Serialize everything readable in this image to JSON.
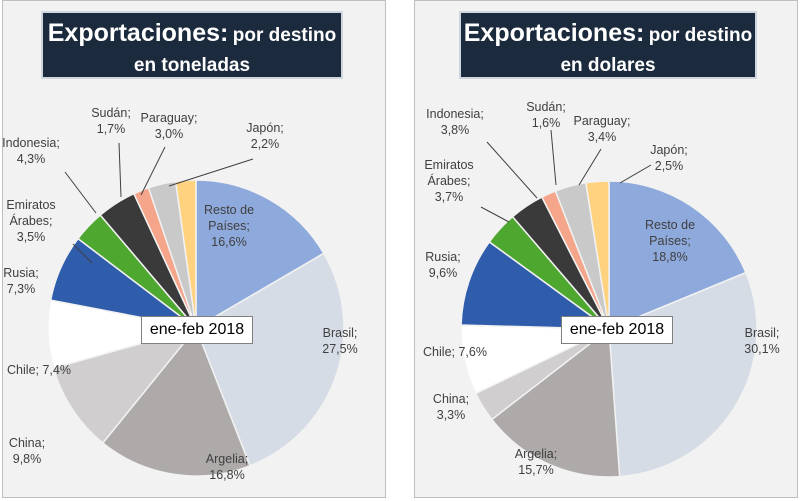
{
  "period_label": "ene-feb 2018",
  "chart_data": [
    {
      "type": "pie",
      "title": "Exportaciones:",
      "subtitle_part1": "por destino",
      "subtitle_part2": "en toneladas",
      "period": "ene-feb 2018",
      "slices": [
        {
          "name": "Resto de Países",
          "label_lines": [
            "Resto de",
            "Países;"
          ],
          "value_label": "16,6%",
          "value": 16.6,
          "color": "#8ea9db"
        },
        {
          "name": "Brasil",
          "label_lines": [
            "Brasil;"
          ],
          "value_label": "27,5%",
          "value": 27.5,
          "color": "#d6dce5"
        },
        {
          "name": "Argelia",
          "label_lines": [
            "Argelia;"
          ],
          "value_label": "16,8%",
          "value": 16.8,
          "color": "#aeaaaa"
        },
        {
          "name": "China",
          "label_lines": [
            "China;"
          ],
          "value_label": "9,8%",
          "value": 9.8,
          "color": "#d0cece"
        },
        {
          "name": "Chile",
          "label_lines": [
            "Chile; 7,4%"
          ],
          "value_label": "",
          "value": 7.4,
          "color": "#ffffff"
        },
        {
          "name": "Rusia",
          "label_lines": [
            "Rusia;"
          ],
          "value_label": "7,3%",
          "value": 7.3,
          "color": "#2f5cab"
        },
        {
          "name": "Emiratos Árabes",
          "label_lines": [
            "Emiratos",
            "Árabes;"
          ],
          "value_label": "3,5%",
          "value": 3.5,
          "color": "#4ea72e"
        },
        {
          "name": "Indonesia",
          "label_lines": [
            "Indonesia;"
          ],
          "value_label": "4,3%",
          "value": 4.3,
          "color": "#3a3a3a"
        },
        {
          "name": "Sudán",
          "label_lines": [
            "Sudán;"
          ],
          "value_label": "1,7%",
          "value": 1.7,
          "color": "#f4a58a"
        },
        {
          "name": "Paraguay",
          "label_lines": [
            "Paraguay;"
          ],
          "value_label": "3,0%",
          "value": 3.0,
          "color": "#c9c9c9"
        },
        {
          "name": "Japón",
          "label_lines": [
            "Japón;"
          ],
          "value_label": "2,2%",
          "value": 2.2,
          "color": "#ffd27f"
        }
      ]
    },
    {
      "type": "pie",
      "title": "Exportaciones:",
      "subtitle_part1": "por destino",
      "subtitle_part2": "en dolares",
      "period": "ene-feb 2018",
      "slices": [
        {
          "name": "Resto de Países",
          "label_lines": [
            "Resto de",
            "Países;"
          ],
          "value_label": "18,8%",
          "value": 18.8,
          "color": "#8ea9db"
        },
        {
          "name": "Brasil",
          "label_lines": [
            "Brasil;"
          ],
          "value_label": "30,1%",
          "value": 30.1,
          "color": "#d6dce5"
        },
        {
          "name": "Argelia",
          "label_lines": [
            "Argelia;"
          ],
          "value_label": "15,7%",
          "value": 15.7,
          "color": "#aeaaaa"
        },
        {
          "name": "China",
          "label_lines": [
            "China;"
          ],
          "value_label": "3,3%",
          "value": 3.3,
          "color": "#d0cece"
        },
        {
          "name": "Chile",
          "label_lines": [
            "Chile; 7,6%"
          ],
          "value_label": "",
          "value": 7.6,
          "color": "#ffffff"
        },
        {
          "name": "Rusia",
          "label_lines": [
            "Rusia;"
          ],
          "value_label": "9,6%",
          "value": 9.6,
          "color": "#2f5cab"
        },
        {
          "name": "Emiratos Árabes",
          "label_lines": [
            "Emiratos",
            "Árabes;"
          ],
          "value_label": "3,7%",
          "value": 3.7,
          "color": "#4ea72e"
        },
        {
          "name": "Indonesia",
          "label_lines": [
            "Indonesia;"
          ],
          "value_label": "3,8%",
          "value": 3.8,
          "color": "#3a3a3a"
        },
        {
          "name": "Sudán",
          "label_lines": [
            "Sudán;"
          ],
          "value_label": "1,6%",
          "value": 1.6,
          "color": "#f4a58a"
        },
        {
          "name": "Paraguay",
          "label_lines": [
            "Paraguay;"
          ],
          "value_label": "3,4%",
          "value": 3.4,
          "color": "#c9c9c9"
        },
        {
          "name": "Japón",
          "label_lines": [
            "Japón;"
          ],
          "value_label": "2,5%",
          "value": 2.5,
          "color": "#ffd27f"
        }
      ]
    }
  ]
}
